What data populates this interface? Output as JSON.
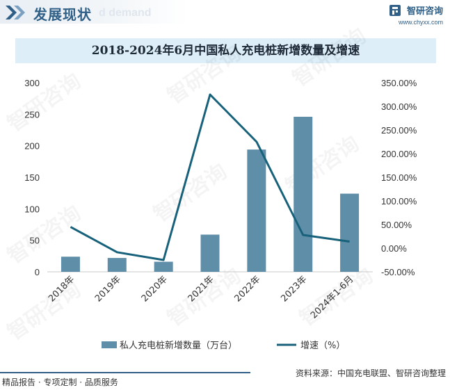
{
  "header": {
    "section_title": "发展现状",
    "section_ghost": "d demand",
    "brand_name": "智研咨询",
    "brand_url": "www.chyxx.com"
  },
  "watermark": "智研咨询",
  "footer": {
    "left": "精品报告 · 专项定制 · 品质服务",
    "right": "资料来源：中国充电联盟、智研咨询整理"
  },
  "colors": {
    "bar": "#5f8ea8",
    "line": "#17617a",
    "accent": "#2f5f86"
  },
  "chart_data": {
    "type": "bar",
    "title": "2018-2024年6月中国私人充电桩新增数量及增速",
    "categories": [
      "2018年",
      "2019年",
      "2020年",
      "2021年",
      "2022年",
      "2023年",
      "2024年1-6月"
    ],
    "series": [
      {
        "name": "私人充电桩新增数量（万台）",
        "type": "bar",
        "axis": "left",
        "values": [
          24,
          22,
          16,
          59,
          194,
          246,
          124
        ]
      },
      {
        "name": "增速（%）",
        "type": "line",
        "axis": "right",
        "values": [
          45.0,
          -8.5,
          -25.0,
          325.0,
          225.0,
          28.0,
          14.0
        ]
      }
    ],
    "ylim_left": [
      0,
      300
    ],
    "yticks_left": [
      "0",
      "50",
      "100",
      "150",
      "200",
      "250",
      "300"
    ],
    "ylim_right": [
      -50,
      350
    ],
    "yticks_right": [
      "-50.00%",
      "0.00%",
      "50.00%",
      "100.00%",
      "150.00%",
      "200.00%",
      "250.00%",
      "300.00%",
      "350.00%"
    ],
    "grid": false,
    "legend_position": "bottom"
  }
}
